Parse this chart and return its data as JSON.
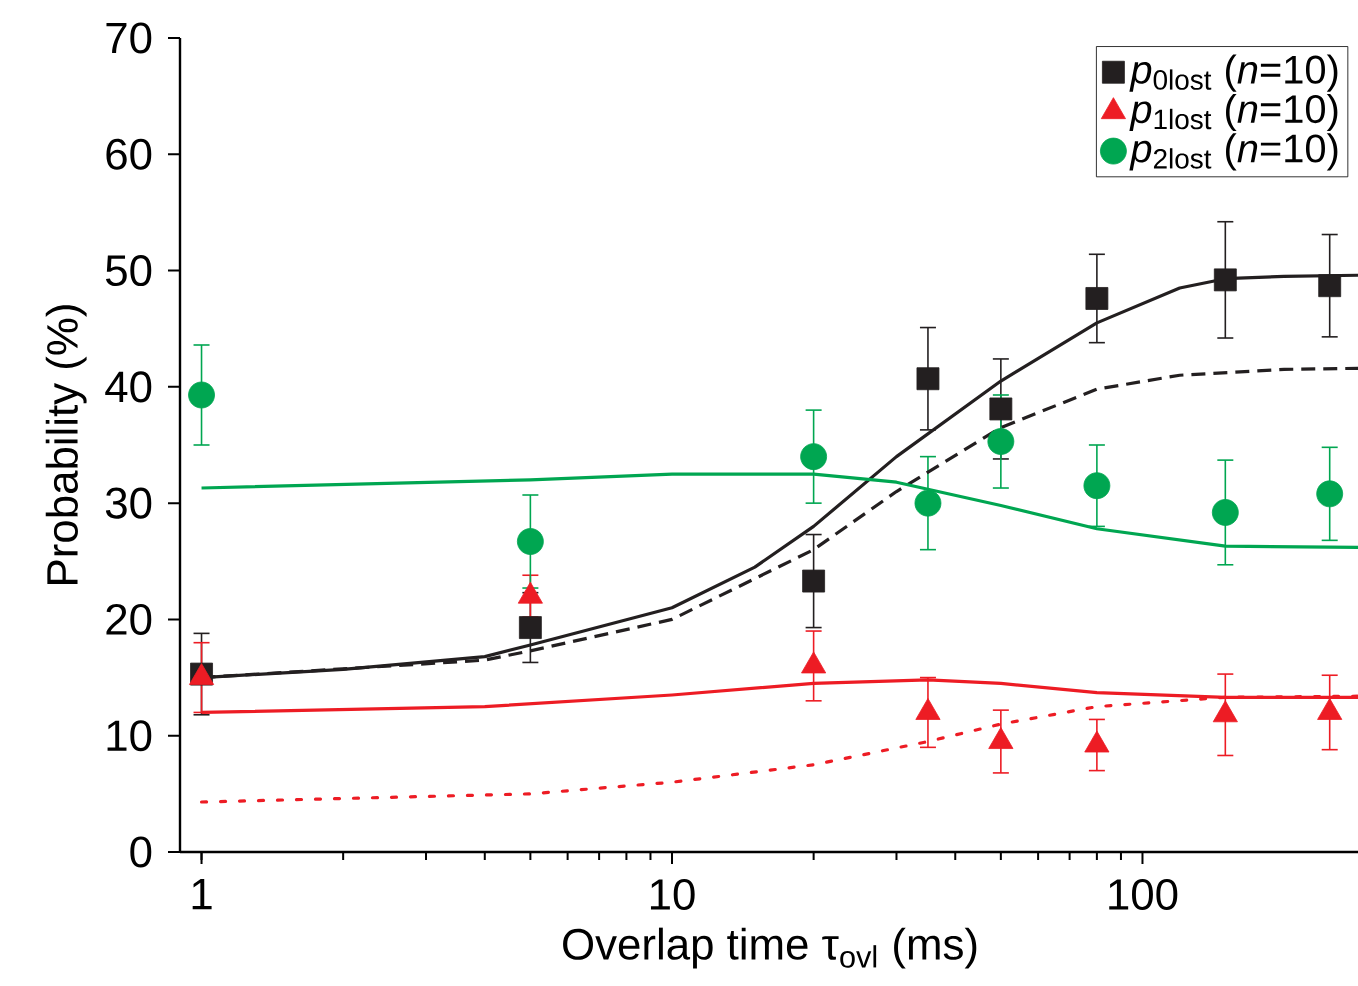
{
  "chart_data": {
    "type": "scatter",
    "xlabel": "Overlap time τ$_{ovl}$ (ms)",
    "ylabel": "Probability (%)",
    "log": "x",
    "xlim": [
      0.9,
      290
    ],
    "ylim": [
      0,
      70
    ],
    "xticks": [
      1,
      10,
      100
    ],
    "yticks": [
      0,
      10,
      20,
      30,
      40,
      50,
      60,
      70
    ],
    "legend": "top right",
    "grid": false,
    "x": [
      1,
      5,
      20,
      35,
      50,
      80,
      150,
      250
    ],
    "series": [
      {
        "name": "*p*$_{0lost}$ (*n*=10)",
        "color": "#231f20",
        "marker": "square",
        "values": [
          15.3,
          19.3,
          23.3,
          40.7,
          38.1,
          47.6,
          49.2,
          48.7
        ],
        "errors": [
          3.5,
          3,
          4,
          4.4,
          4.3,
          3.8,
          5,
          4.4
        ]
      },
      {
        "name": "*p*$_{1lost}$ (*n*=10)",
        "color": "#ed1c24",
        "marker": "triangle",
        "values": [
          15,
          22,
          16,
          12,
          9.5,
          9.2,
          11.8,
          12
        ],
        "errors": [
          3,
          1.8,
          3,
          3,
          2.7,
          2.2,
          3.5,
          3.2
        ]
      },
      {
        "name": "*p*$_{2lost}$ (*n*=10)",
        "color": "#00a651",
        "marker": "circle",
        "values": [
          39.3,
          26.7,
          34,
          30,
          35.3,
          31.5,
          29.2,
          30.8
        ],
        "errors": [
          4.3,
          4,
          4,
          4,
          4,
          3.5,
          4.5,
          4
        ]
      },
      {
        "type": "line",
        "color": "#231f20",
        "line_style": "solid",
        "x": [
          1,
          2,
          4,
          5,
          10,
          15,
          20,
          30,
          50,
          80,
          120,
          150,
          200,
          290
        ],
        "values": [
          15,
          15.7,
          16.8,
          17.8,
          21,
          24.5,
          28,
          34,
          40.5,
          45.5,
          48.5,
          49.3,
          49.5,
          49.6
        ]
      },
      {
        "type": "line",
        "color": "#231f20",
        "line_style": "dashed",
        "x": [
          1,
          4,
          5,
          10,
          20,
          30,
          50,
          80,
          120,
          200,
          290
        ],
        "values": [
          15,
          16.5,
          17.3,
          20,
          26,
          31,
          36.5,
          39.8,
          41,
          41.5,
          41.6
        ]
      },
      {
        "type": "line",
        "color": "#00a651",
        "line_style": "solid",
        "x": [
          1,
          5,
          10,
          20,
          30,
          50,
          80,
          150,
          290
        ],
        "values": [
          31.3,
          32,
          32.5,
          32.5,
          31.8,
          29.8,
          27.8,
          26.3,
          26.2
        ]
      },
      {
        "type": "line",
        "color": "#ed1c24",
        "line_style": "solid",
        "x": [
          1,
          4,
          10,
          20,
          35,
          50,
          80,
          150,
          290
        ],
        "values": [
          12,
          12.5,
          13.5,
          14.5,
          14.8,
          14.5,
          13.7,
          13.3,
          13.3
        ]
      },
      {
        "type": "line",
        "color": "#ed1c24",
        "line_style": "dotted",
        "x": [
          1,
          5,
          10,
          20,
          35,
          50,
          80,
          150,
          290
        ],
        "values": [
          4.3,
          5,
          6,
          7.5,
          9.5,
          11,
          12.5,
          13.3,
          13.4
        ]
      }
    ]
  }
}
